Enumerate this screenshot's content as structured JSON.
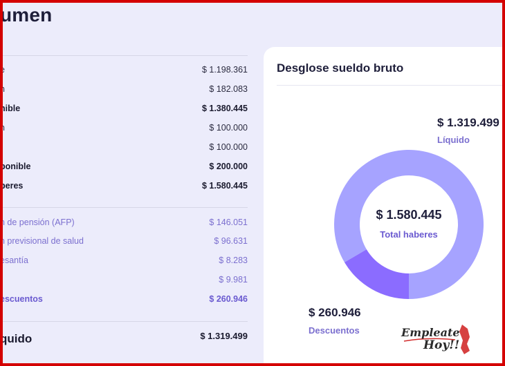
{
  "page": {
    "title": "umen"
  },
  "left_rows": [
    {
      "label": "e",
      "value": "$ 1.198.361",
      "style": "normal"
    },
    {
      "label": "n",
      "value": "$ 182.083",
      "style": "normal"
    },
    {
      "label": "nible",
      "value": "$ 1.380.445",
      "style": "bold"
    },
    {
      "label": "n",
      "value": "$ 100.000",
      "style": "normal"
    },
    {
      "label": "",
      "value": "$ 100.000",
      "style": "normal"
    },
    {
      "label": "ponible",
      "value": "$ 200.000",
      "style": "bold"
    },
    {
      "label": "beres",
      "value": "$ 1.580.445",
      "style": "bold"
    },
    {
      "label": "n de pensión (AFP)",
      "value": "$ 146.051",
      "style": "purple"
    },
    {
      "label": "n previsional de salud",
      "value": "$ 96.631",
      "style": "purple"
    },
    {
      "label": "esantía",
      "value": "$ 8.283",
      "style": "purple"
    },
    {
      "label": "",
      "value": "$ 9.981",
      "style": "purple"
    },
    {
      "label": "escuentos",
      "value": "$ 260.946",
      "style": "purple-bold"
    },
    {
      "label": "quido",
      "value": "$ 1.319.499",
      "style": "total"
    }
  ],
  "card": {
    "title": "Desglose sueldo bruto",
    "liquido_amount": "$ 1.319.499",
    "liquido_label": "Líquido",
    "descuentos_amount": "$ 260.946",
    "descuentos_label": "Descuentos",
    "total_amount": "$ 1.580.445",
    "total_label": "Total haberes"
  },
  "chart_data": {
    "type": "pie",
    "categories": [
      "Líquido",
      "Descuentos"
    ],
    "values": [
      1319499,
      260946
    ],
    "colors": [
      "#a6a3ff",
      "#8b6cff"
    ]
  },
  "colors": {
    "background": "#ececfb",
    "card": "#ffffff",
    "accent": "#7b6fcf",
    "frame": "#d40000"
  },
  "logo": {
    "line1": "Empleate",
    "line2": "Hoy!!"
  }
}
